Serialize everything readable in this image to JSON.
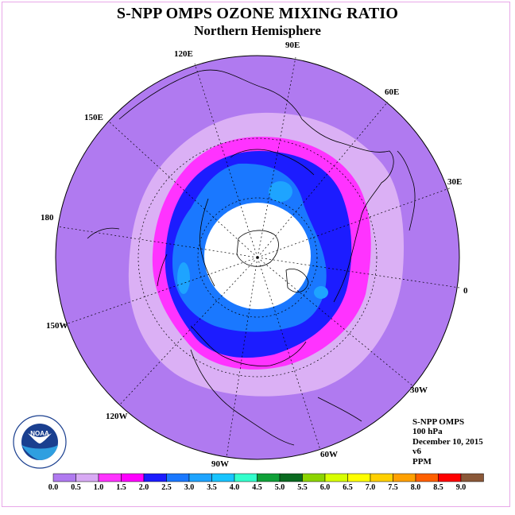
{
  "title": "S-NPP OMPS OZONE MIXING RATIO",
  "subtitle": "Northern Hemisphere",
  "longitude_labels": {
    "lon_90e": "90E",
    "lon_60e": "60E",
    "lon_30e": "30E",
    "lon_0": "0",
    "lon_30w": "30W",
    "lon_60w": "60W",
    "lon_90w": "90W",
    "lon_120w": "120W",
    "lon_150w": "150W",
    "lon_180": "180",
    "lon_150e": "150E",
    "lon_120e": "120E"
  },
  "info": {
    "instrument": "S-NPP OMPS",
    "level": "100 hPa",
    "date": "December 10, 2015",
    "version": "v6",
    "units": "PPM"
  },
  "logo": {
    "text": "NOAA",
    "ring_text": "NATIONAL OCEANIC AND ATMOSPHERIC ADMINISTRATION · U.S. DEPARTMENT OF COMMERCE"
  },
  "colorbar": {
    "ticks": [
      "0.0",
      "0.5",
      "1.0",
      "1.5",
      "2.0",
      "2.5",
      "3.0",
      "3.5",
      "4.0",
      "4.5",
      "5.0",
      "5.5",
      "6.0",
      "6.5",
      "7.0",
      "7.5",
      "8.0",
      "8.5",
      "9.0"
    ],
    "colors": [
      "#b07af0",
      "#d8aaf4",
      "#ff33ff",
      "#ff00ff",
      "#1c1cff",
      "#1a78ff",
      "#1ea4ff",
      "#18c4ff",
      "#33ffcc",
      "#10a038",
      "#0a6a20",
      "#8cd400",
      "#d8ff00",
      "#ffff00",
      "#ffd000",
      "#ffa000",
      "#ff6000",
      "#ff0000",
      "#8a5838"
    ]
  }
}
